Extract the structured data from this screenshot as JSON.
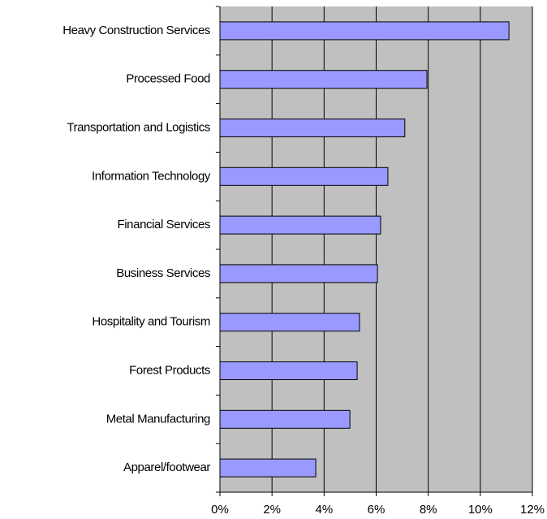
{
  "chart_data": {
    "type": "bar",
    "orientation": "horizontal",
    "categories": [
      "Heavy Construction Services",
      "Processed Food",
      "Transportation and Logistics",
      "Information Technology",
      "Financial Services",
      "Business Services",
      "Hospitality and Tourism",
      "Forest Products",
      "Metal Manufacturing",
      "Apparel/footwear"
    ],
    "values": [
      11.1,
      7.95,
      7.1,
      6.45,
      6.17,
      6.05,
      5.36,
      5.27,
      4.99,
      3.68
    ],
    "color": "#9999ff",
    "xlim": [
      0,
      12
    ],
    "xticks": [
      {
        "value": 0,
        "label": "0%"
      },
      {
        "value": 2,
        "label": "2%"
      },
      {
        "value": 4,
        "label": "4%"
      },
      {
        "value": 6,
        "label": "6%"
      },
      {
        "value": 8,
        "label": "8%"
      },
      {
        "value": 10,
        "label": "10%"
      },
      {
        "value": 12,
        "label": "12%"
      }
    ],
    "grid": true
  }
}
